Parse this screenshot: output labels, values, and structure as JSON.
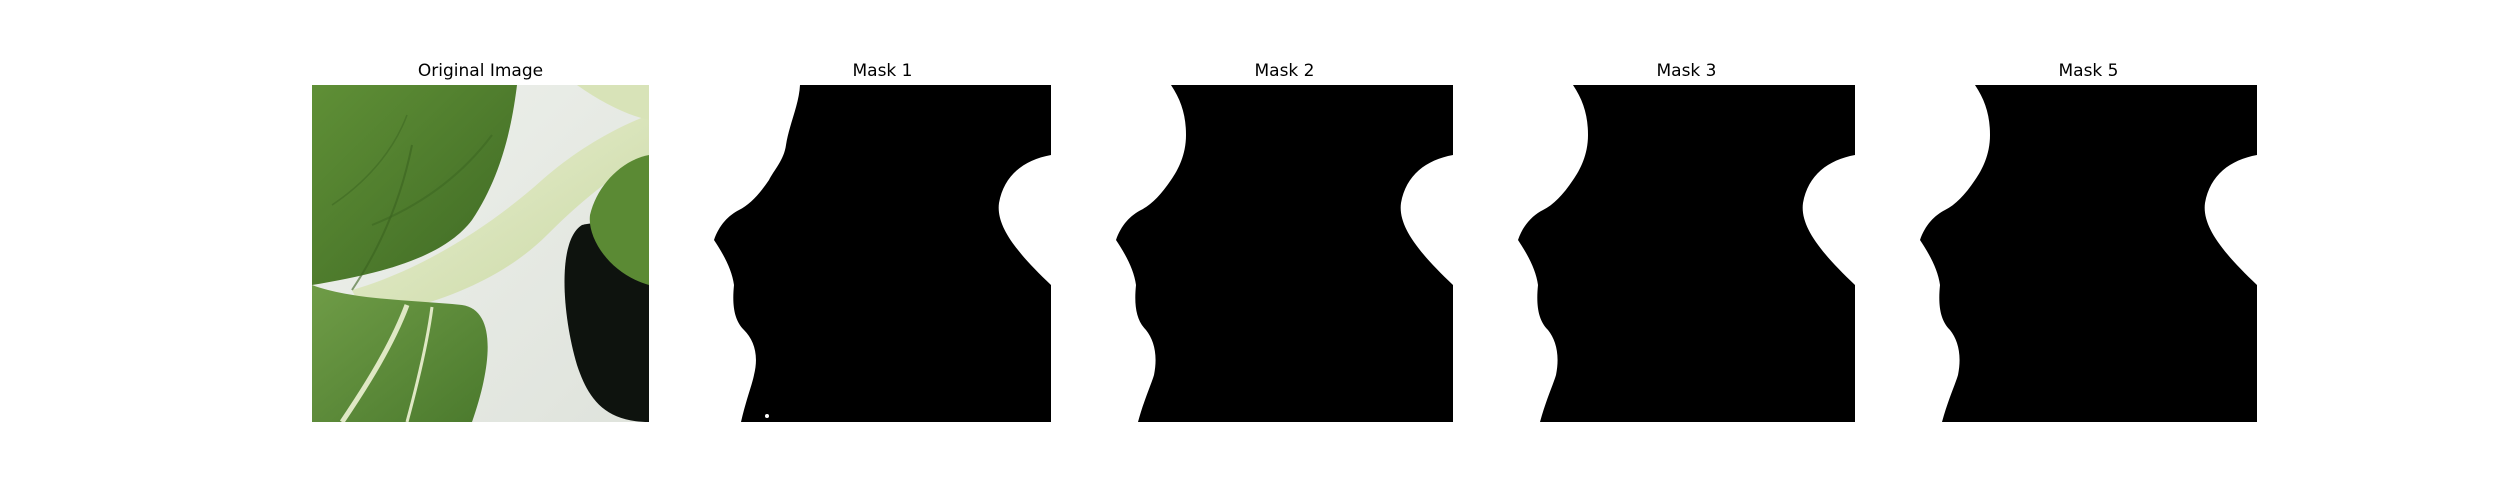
{
  "panels": [
    {
      "title": "Original Image"
    },
    {
      "title": "Mask 1"
    },
    {
      "title": "Mask 2"
    },
    {
      "title": "Mask 3"
    },
    {
      "title": "Mask 5"
    }
  ],
  "colors": {
    "background": "#ffffff",
    "mask_foreground": "#000000",
    "mask_background": "#ffffff",
    "leaf_dark": "#4a7a2c",
    "leaf_mid": "#6d9a45",
    "stem_pale": "#dfe8c4",
    "pot_black": "#0e130e"
  }
}
